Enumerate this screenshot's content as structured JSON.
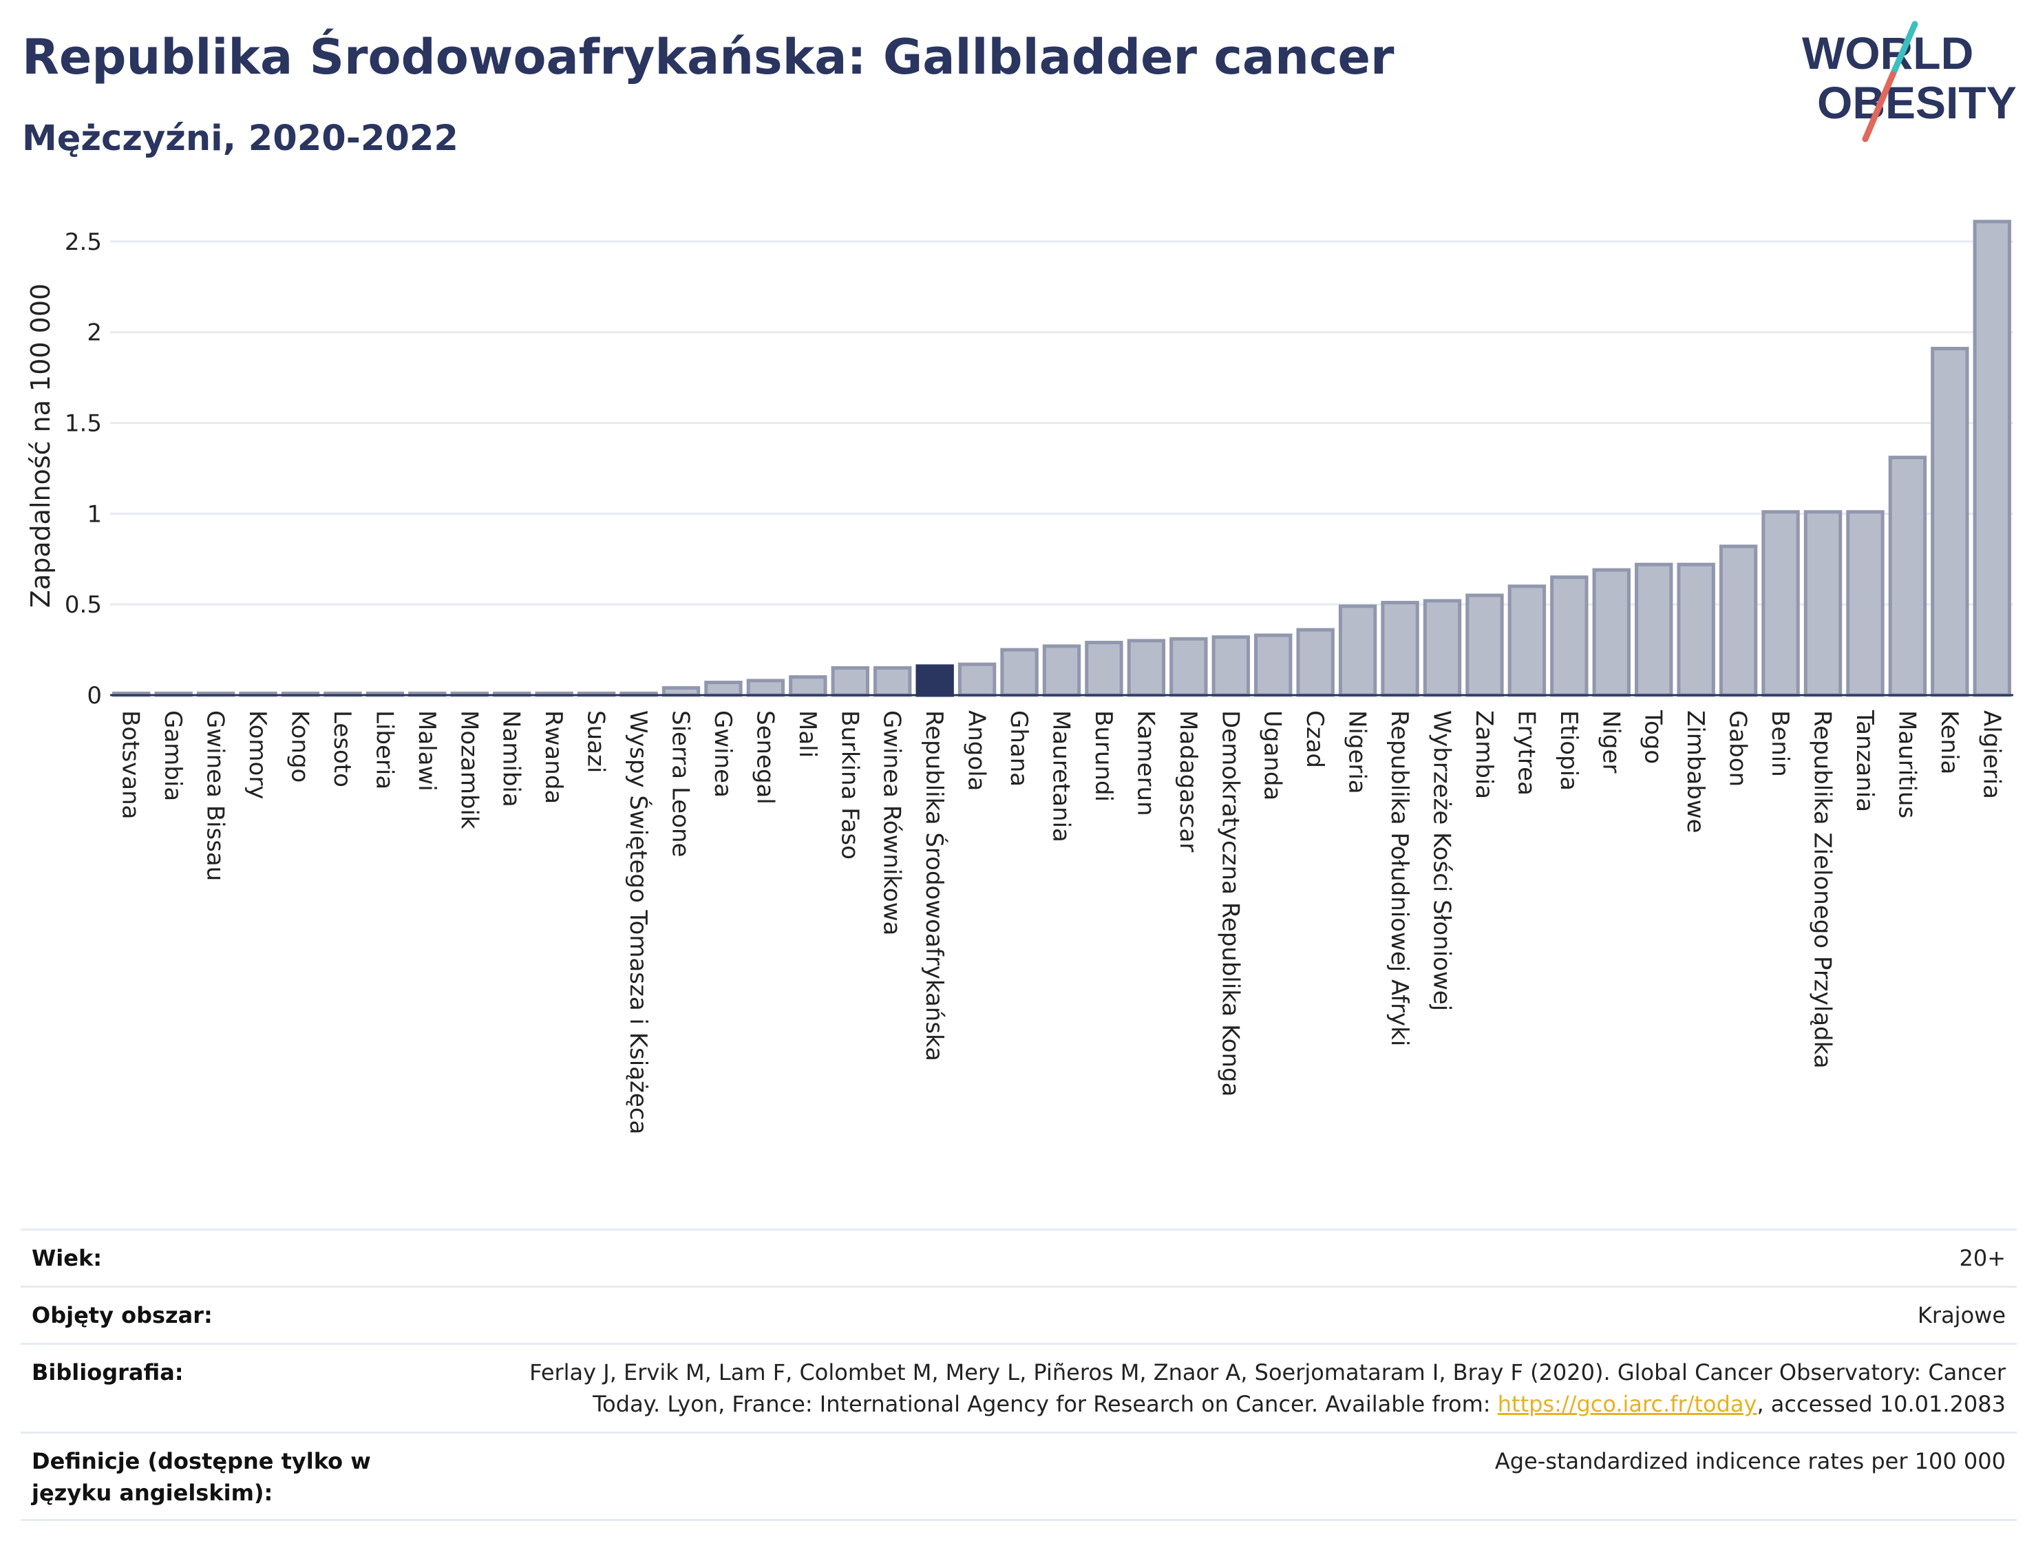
{
  "header": {
    "title": "Republika Środowoafrykańska: Gallbladder cancer",
    "subtitle": "Mężczyźni, 2020-2022"
  },
  "logo": {
    "line1": "WORLD",
    "line2": "OBESITY",
    "icon": "world-obesity-logo"
  },
  "colors": {
    "bar": "#b7bccb",
    "bar_stroke": "#9197ad",
    "highlight": "#2a3560",
    "title": "#2a3560",
    "link": "#e6b123"
  },
  "chart_data": {
    "type": "bar",
    "ylabel": "Zapadalność na 100 000",
    "ylim": [
      0,
      2.75
    ],
    "yticks": [
      0,
      0.5,
      1,
      1.5,
      2,
      2.5
    ],
    "ytick_labels": [
      "0",
      "0.5",
      "1",
      "1.5",
      "2",
      "2.5"
    ],
    "grid": true,
    "highlight": "Republika Środowoafrykańska",
    "categories": [
      "Botsvana",
      "Gambia",
      "Gwinea Bissau",
      "Komory",
      "Kongo",
      "Lesoto",
      "Liberia",
      "Malawi",
      "Mozambik",
      "Namibia",
      "Rwanda",
      "Suazi",
      "Wyspy Świętego Tomasza i Książęca",
      "Sierra Leone",
      "Gwinea",
      "Senegal",
      "Mali",
      "Burkina Faso",
      "Gwinea Równikowa",
      "Republika Środowoafrykańska",
      "Angola",
      "Ghana",
      "Mauretania",
      "Burundi",
      "Kamerun",
      "Madagascar",
      "Demokratyczna Republika Konga",
      "Uganda",
      "Czad",
      "Nigeria",
      "Republika Południowej Afryki",
      "Wybrzeże Kości Słoniowej",
      "Zambia",
      "Erytrea",
      "Etiopia",
      "Niger",
      "Togo",
      "Zimbabwe",
      "Gabon",
      "Benin",
      "Republika Zielonego Przylądka",
      "Tanzania",
      "Mauritius",
      "Kenia",
      "Algieria"
    ],
    "values": [
      0.01,
      0.01,
      0.01,
      0.01,
      0.01,
      0.01,
      0.01,
      0.01,
      0.01,
      0.01,
      0.01,
      0.01,
      0.01,
      0.04,
      0.07,
      0.08,
      0.1,
      0.15,
      0.15,
      0.16,
      0.17,
      0.25,
      0.27,
      0.29,
      0.3,
      0.31,
      0.32,
      0.33,
      0.36,
      0.49,
      0.51,
      0.52,
      0.55,
      0.6,
      0.65,
      0.69,
      0.72,
      0.72,
      0.82,
      1.01,
      1.01,
      1.01,
      1.31,
      1.91,
      2.61
    ]
  },
  "info_table": [
    {
      "label": "Wiek:",
      "value": "20+"
    },
    {
      "label": "Objęty obszar:",
      "value": "Krajowe"
    },
    {
      "label": "Bibliografia:",
      "value_before": "Ferlay J, Ervik M, Lam F, Colombet M, Mery L, Piñeros M, Znaor A, Soerjomataram I, Bray F (2020). Global Cancer Observatory: Cancer Today. Lyon, France: International Agency for Research on Cancer. Available from: ",
      "link": "https://gco.iarc.fr/today",
      "value_after": ", accessed 10.01.2083"
    },
    {
      "label": "Definicje (dostępne tylko w języku angielskim):",
      "value": "Age-standardized indicence rates per 100 000"
    }
  ]
}
